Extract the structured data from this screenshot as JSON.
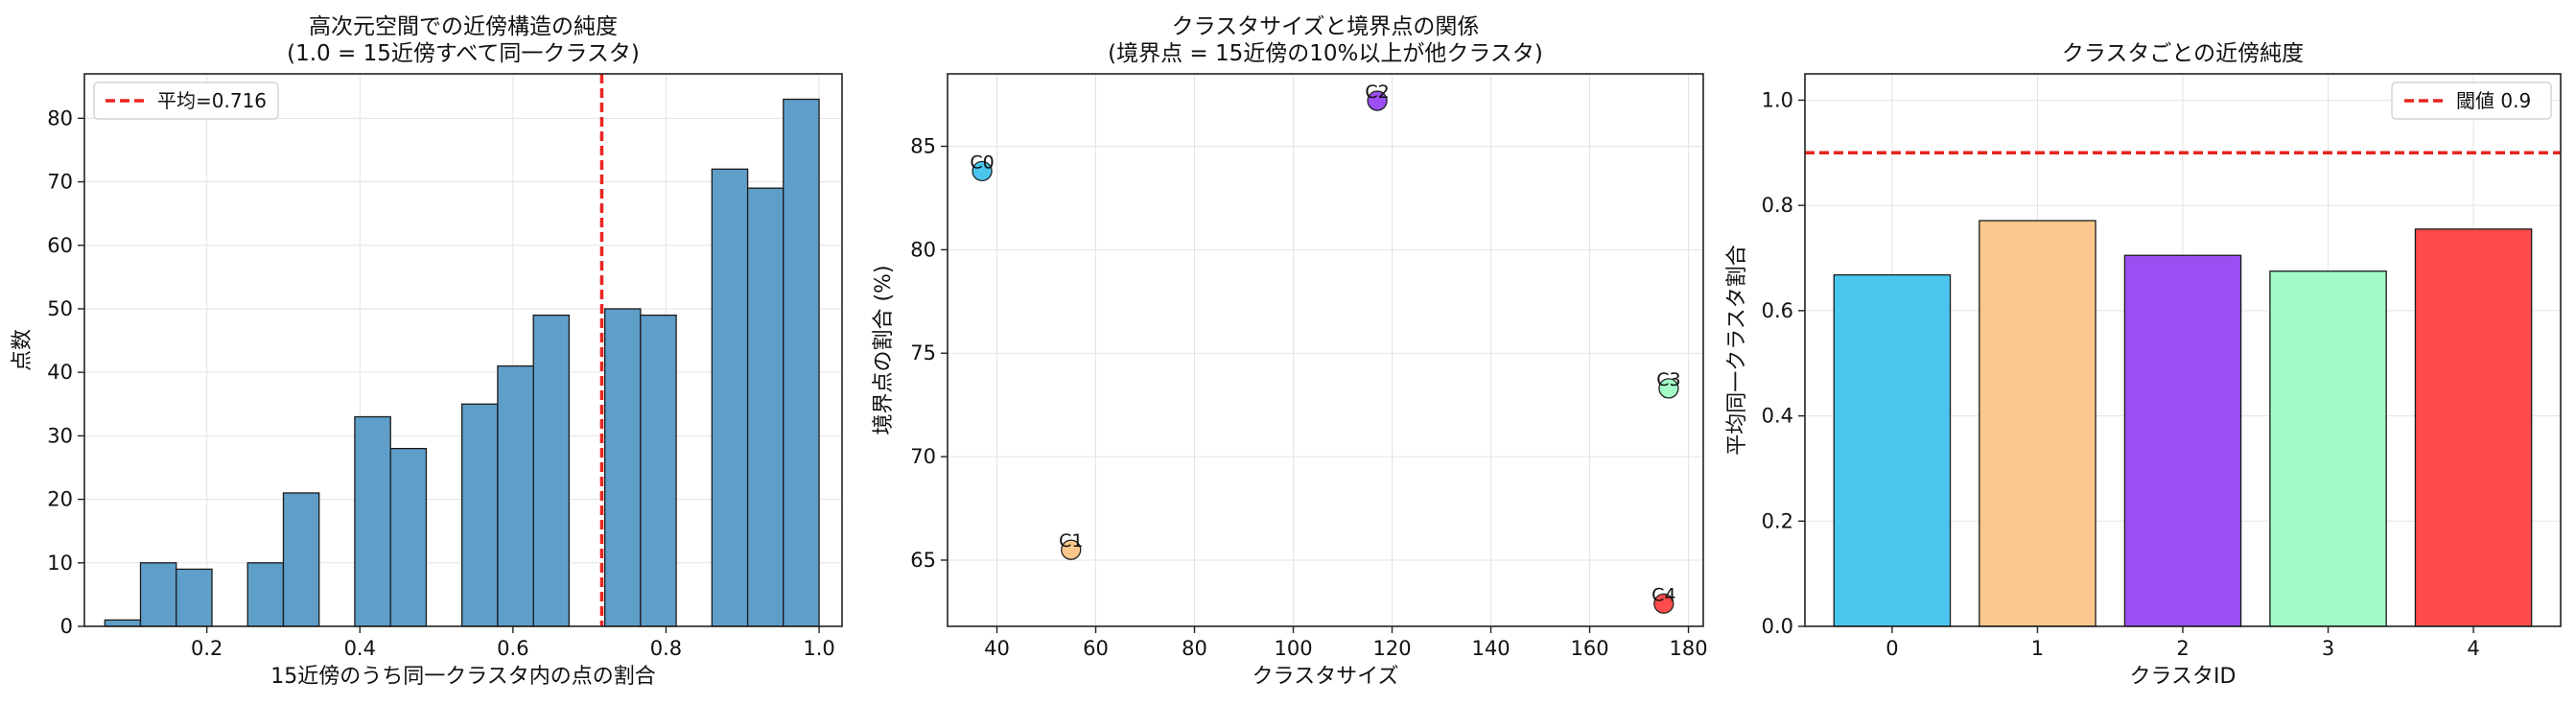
{
  "chart_data": [
    {
      "type": "bar",
      "title": "高次元空間での近傍構造の純度",
      "subtitle": "(1.0 = 15近傍すべて同一クラスタ)",
      "xlabel": "15近傍のうち同一クラスタ内の点の割合",
      "ylabel": "点数",
      "xlim": [
        0.04,
        1.03
      ],
      "ylim": [
        0,
        87
      ],
      "xticks": [
        0.2,
        0.4,
        0.6,
        0.8,
        1.0
      ],
      "xtick_labels": [
        "0.2",
        "0.4",
        "0.6",
        "0.8",
        "1.0"
      ],
      "yticks": [
        0,
        10,
        20,
        30,
        40,
        50,
        60,
        70,
        80
      ],
      "ytick_labels": [
        "0",
        "10",
        "20",
        "30",
        "40",
        "50",
        "60",
        "70",
        "80"
      ],
      "grid": true,
      "bins": [
        {
          "x0": 0.0667,
          "x1": 0.1133,
          "count": 1
        },
        {
          "x0": 0.1133,
          "x1": 0.16,
          "count": 10
        },
        {
          "x0": 0.16,
          "x1": 0.2067,
          "count": 9
        },
        {
          "x0": 0.2533,
          "x1": 0.3,
          "count": 10
        },
        {
          "x0": 0.3,
          "x1": 0.3467,
          "count": 21
        },
        {
          "x0": 0.3933,
          "x1": 0.44,
          "count": 33
        },
        {
          "x0": 0.44,
          "x1": 0.4867,
          "count": 28
        },
        {
          "x0": 0.5333,
          "x1": 0.58,
          "count": 35
        },
        {
          "x0": 0.58,
          "x1": 0.6267,
          "count": 41
        },
        {
          "x0": 0.6267,
          "x1": 0.6733,
          "count": 49
        },
        {
          "x0": 0.72,
          "x1": 0.7667,
          "count": 50
        },
        {
          "x0": 0.7667,
          "x1": 0.8133,
          "count": 49
        },
        {
          "x0": 0.86,
          "x1": 0.9067,
          "count": 72
        },
        {
          "x0": 0.9067,
          "x1": 0.9533,
          "count": 69
        },
        {
          "x0": 0.9533,
          "x1": 1.0,
          "count": 83
        }
      ],
      "bar_color": "#5f9ec9",
      "mean_line": {
        "value": 0.716,
        "color": "#e8251f",
        "label": "平均=0.716"
      },
      "legend": "top-left"
    },
    {
      "type": "scatter",
      "title": "クラスタサイズと境界点の関係",
      "subtitle": "(境界点 = 15近傍の10%以上が他クラスタ)",
      "xlabel": "クラスタサイズ",
      "ylabel": "境界点の割合 (%)",
      "xlim": [
        30,
        183
      ],
      "ylim": [
        61.8,
        88.5
      ],
      "xticks": [
        40,
        60,
        80,
        100,
        120,
        140,
        160,
        180
      ],
      "xtick_labels": [
        "40",
        "60",
        "80",
        "100",
        "120",
        "140",
        "160",
        "180"
      ],
      "yticks": [
        65,
        70,
        75,
        80,
        85
      ],
      "ytick_labels": [
        "65",
        "70",
        "75",
        "80",
        "85"
      ],
      "grid": true,
      "points": [
        {
          "label": "C0",
          "x": 37,
          "y": 83.8,
          "color": "#4ac6ee"
        },
        {
          "label": "C1",
          "x": 55,
          "y": 65.5,
          "color": "#fbc78d"
        },
        {
          "label": "C2",
          "x": 117,
          "y": 87.2,
          "color": "#9b4ef2"
        },
        {
          "label": "C3",
          "x": 176,
          "y": 73.3,
          "color": "#a3fcc8"
        },
        {
          "label": "C4",
          "x": 175,
          "y": 62.9,
          "color": "#ff4b4b"
        }
      ]
    },
    {
      "type": "bar",
      "title": "クラスタごとの近傍純度",
      "xlabel": "クラスタID",
      "ylabel": "平均同一クラスタ割合",
      "categories": [
        "0",
        "1",
        "2",
        "3",
        "4"
      ],
      "values": [
        0.668,
        0.771,
        0.705,
        0.675,
        0.755
      ],
      "colors": [
        "#4ac6ee",
        "#fbc78d",
        "#9b4ef2",
        "#a3fcc8",
        "#ff4b4b"
      ],
      "ylim": [
        0,
        1.05
      ],
      "yticks": [
        0.0,
        0.2,
        0.4,
        0.6,
        0.8,
        1.0
      ],
      "ytick_labels": [
        "0.0",
        "0.2",
        "0.4",
        "0.6",
        "0.8",
        "1.0"
      ],
      "grid": true,
      "threshold_line": {
        "value": 0.9,
        "color": "#e8251f",
        "label": "閾値 0.9"
      },
      "legend": "top-right"
    }
  ]
}
